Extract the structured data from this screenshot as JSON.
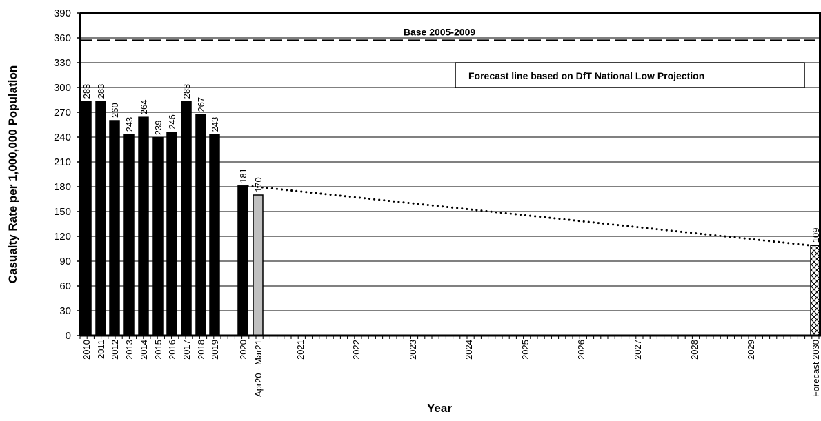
{
  "chart_data": {
    "type": "bar",
    "ylabel": "Casualty Rate per 1,000,000 Population",
    "xlabel": "Year",
    "ylim": [
      0,
      390
    ],
    "yticks": [
      0,
      30,
      60,
      90,
      120,
      150,
      180,
      210,
      240,
      270,
      300,
      330,
      360,
      390
    ],
    "grid": true,
    "categories": [
      "2010",
      "2011",
      "2012",
      "2013",
      "2014",
      "2015",
      "2016",
      "2017",
      "2018",
      "2019",
      "2020",
      "Apr20 - Mar21",
      "2021",
      "2022",
      "2023",
      "2024",
      "2025",
      "2026",
      "2027",
      "2028",
      "2029",
      "Forecast 2030"
    ],
    "bars": [
      {
        "category": "2010",
        "value": 283,
        "label": "283",
        "style": "solid"
      },
      {
        "category": "2011",
        "value": 283,
        "label": "283",
        "style": "solid"
      },
      {
        "category": "2012",
        "value": 260,
        "label": "260",
        "style": "solid"
      },
      {
        "category": "2013",
        "value": 243,
        "label": "243",
        "style": "solid"
      },
      {
        "category": "2014",
        "value": 264,
        "label": "264",
        "style": "solid"
      },
      {
        "category": "2015",
        "value": 239,
        "label": "239",
        "style": "solid"
      },
      {
        "category": "2016",
        "value": 246,
        "label": "246",
        "style": "solid"
      },
      {
        "category": "2017",
        "value": 283,
        "label": "283",
        "style": "solid"
      },
      {
        "category": "2018",
        "value": 267,
        "label": "267",
        "style": "solid"
      },
      {
        "category": "2019",
        "value": 243,
        "label": "243",
        "style": "solid"
      },
      {
        "category": "2020",
        "value": 181,
        "label": "181",
        "style": "solid"
      },
      {
        "category": "Apr20 - Mar21",
        "value": 170,
        "label": "170",
        "style": "grey"
      },
      {
        "category": "Forecast 2030",
        "value": 109,
        "label": "109",
        "style": "hatched"
      }
    ],
    "baseline": {
      "label": "Base 2005-2009",
      "value": 357
    },
    "forecast_line": {
      "label": "Forecast line based on DfT National Low Projection",
      "x": [
        "2020",
        "Forecast 2030"
      ],
      "y": [
        181,
        109
      ]
    },
    "colors": {
      "solid": "#000000",
      "grey": "#c0c0c0",
      "hatched": "#ffffff",
      "grid": "#000000"
    }
  }
}
